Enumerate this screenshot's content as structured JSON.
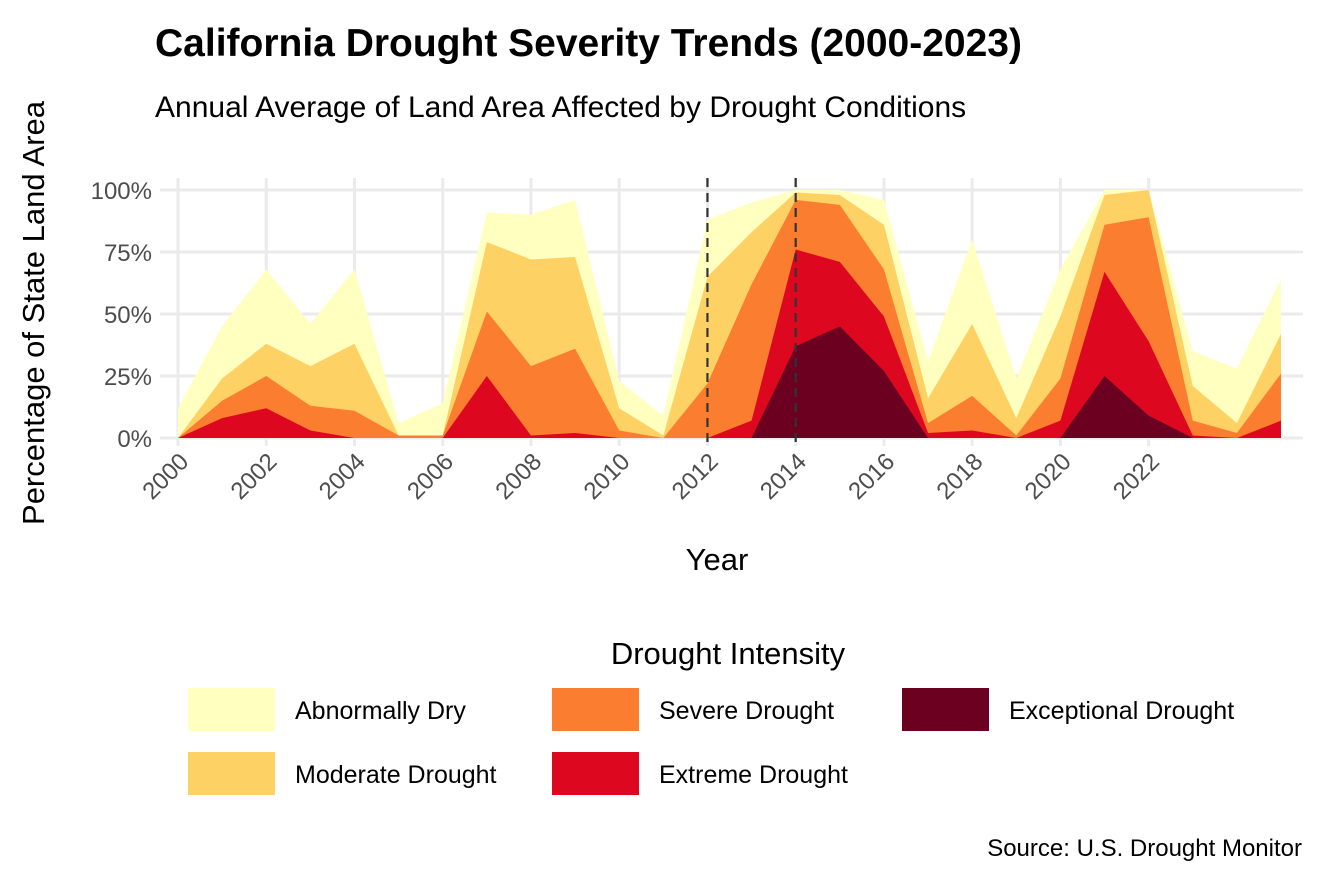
{
  "chart_data": {
    "type": "area",
    "stacking": "stacked",
    "title": "California Drought Severity Trends (2000-2023)",
    "subtitle": "Annual Average of Land Area Affected by Drought Conditions",
    "xlabel": "Year",
    "ylabel": "Percentage of State Land Area",
    "caption": "Source: U.S. Drought Monitor",
    "legend_title": "Drought Intensity",
    "legend_position": "bottom",
    "grid": true,
    "x": [
      2000,
      2001,
      2002,
      2003,
      2004,
      2005,
      2006,
      2007,
      2008,
      2009,
      2010,
      2011,
      2012,
      2013,
      2014,
      2015,
      2016,
      2017,
      2018,
      2019,
      2020,
      2021,
      2022,
      2023,
      2024,
      2025
    ],
    "xlim": [
      2000,
      2025
    ],
    "ylim": [
      0,
      100
    ],
    "x_ticks": [
      "2000",
      "2002",
      "2004",
      "2006",
      "2008",
      "2010",
      "2012",
      "2014",
      "2016",
      "2018",
      "2020",
      "2022"
    ],
    "x_tick_values": [
      2000,
      2002,
      2004,
      2006,
      2008,
      2010,
      2012,
      2014,
      2016,
      2018,
      2020,
      2022
    ],
    "y_ticks": [
      "0%",
      "25%",
      "50%",
      "75%",
      "100%"
    ],
    "y_tick_values": [
      0,
      25,
      50,
      75,
      100
    ],
    "reference_lines": [
      2012,
      2014
    ],
    "series": [
      {
        "name": "Abnormally Dry",
        "color": "#FFFFBF",
        "cumulative": [
          12,
          45,
          68,
          46,
          68,
          6,
          14,
          91,
          90,
          96,
          23,
          9,
          88,
          95,
          100,
          100,
          96,
          31,
          80,
          24,
          68,
          100,
          100,
          35,
          28,
          64
        ]
      },
      {
        "name": "Moderate Drought",
        "color": "#FED165",
        "cumulative": [
          0,
          24,
          38,
          29,
          38,
          1,
          1,
          79,
          72,
          73,
          12,
          1,
          65,
          83,
          99,
          98,
          86,
          16,
          46,
          8,
          49,
          98,
          100,
          21,
          6,
          42
        ]
      },
      {
        "name": "Severe Drought",
        "color": "#FB7D2F",
        "cumulative": [
          0,
          15,
          25,
          13,
          11,
          1,
          1,
          51,
          29,
          36,
          3,
          0,
          22,
          62,
          96,
          94,
          68,
          6,
          17,
          1,
          24,
          86,
          89,
          7,
          2,
          26
        ]
      },
      {
        "name": "Extreme Drought",
        "color": "#DD0720",
        "cumulative": [
          0,
          8,
          12,
          3,
          0,
          0,
          0,
          25,
          1,
          2,
          0,
          0,
          0,
          7,
          76,
          71,
          49,
          2,
          3,
          0,
          7,
          67,
          39,
          1,
          0,
          7
        ]
      },
      {
        "name": "Exceptional Drought",
        "color": "#6B0020",
        "cumulative": [
          0,
          0,
          0,
          0,
          0,
          0,
          0,
          0,
          0,
          0,
          0,
          0,
          0,
          0,
          37,
          45,
          27,
          0,
          0,
          0,
          0,
          25,
          9,
          0,
          0,
          0
        ]
      }
    ],
    "legend_order": [
      "Abnormally Dry",
      "Severe Drought",
      "Exceptional Drought",
      "Moderate Drought",
      "Extreme Drought"
    ]
  }
}
